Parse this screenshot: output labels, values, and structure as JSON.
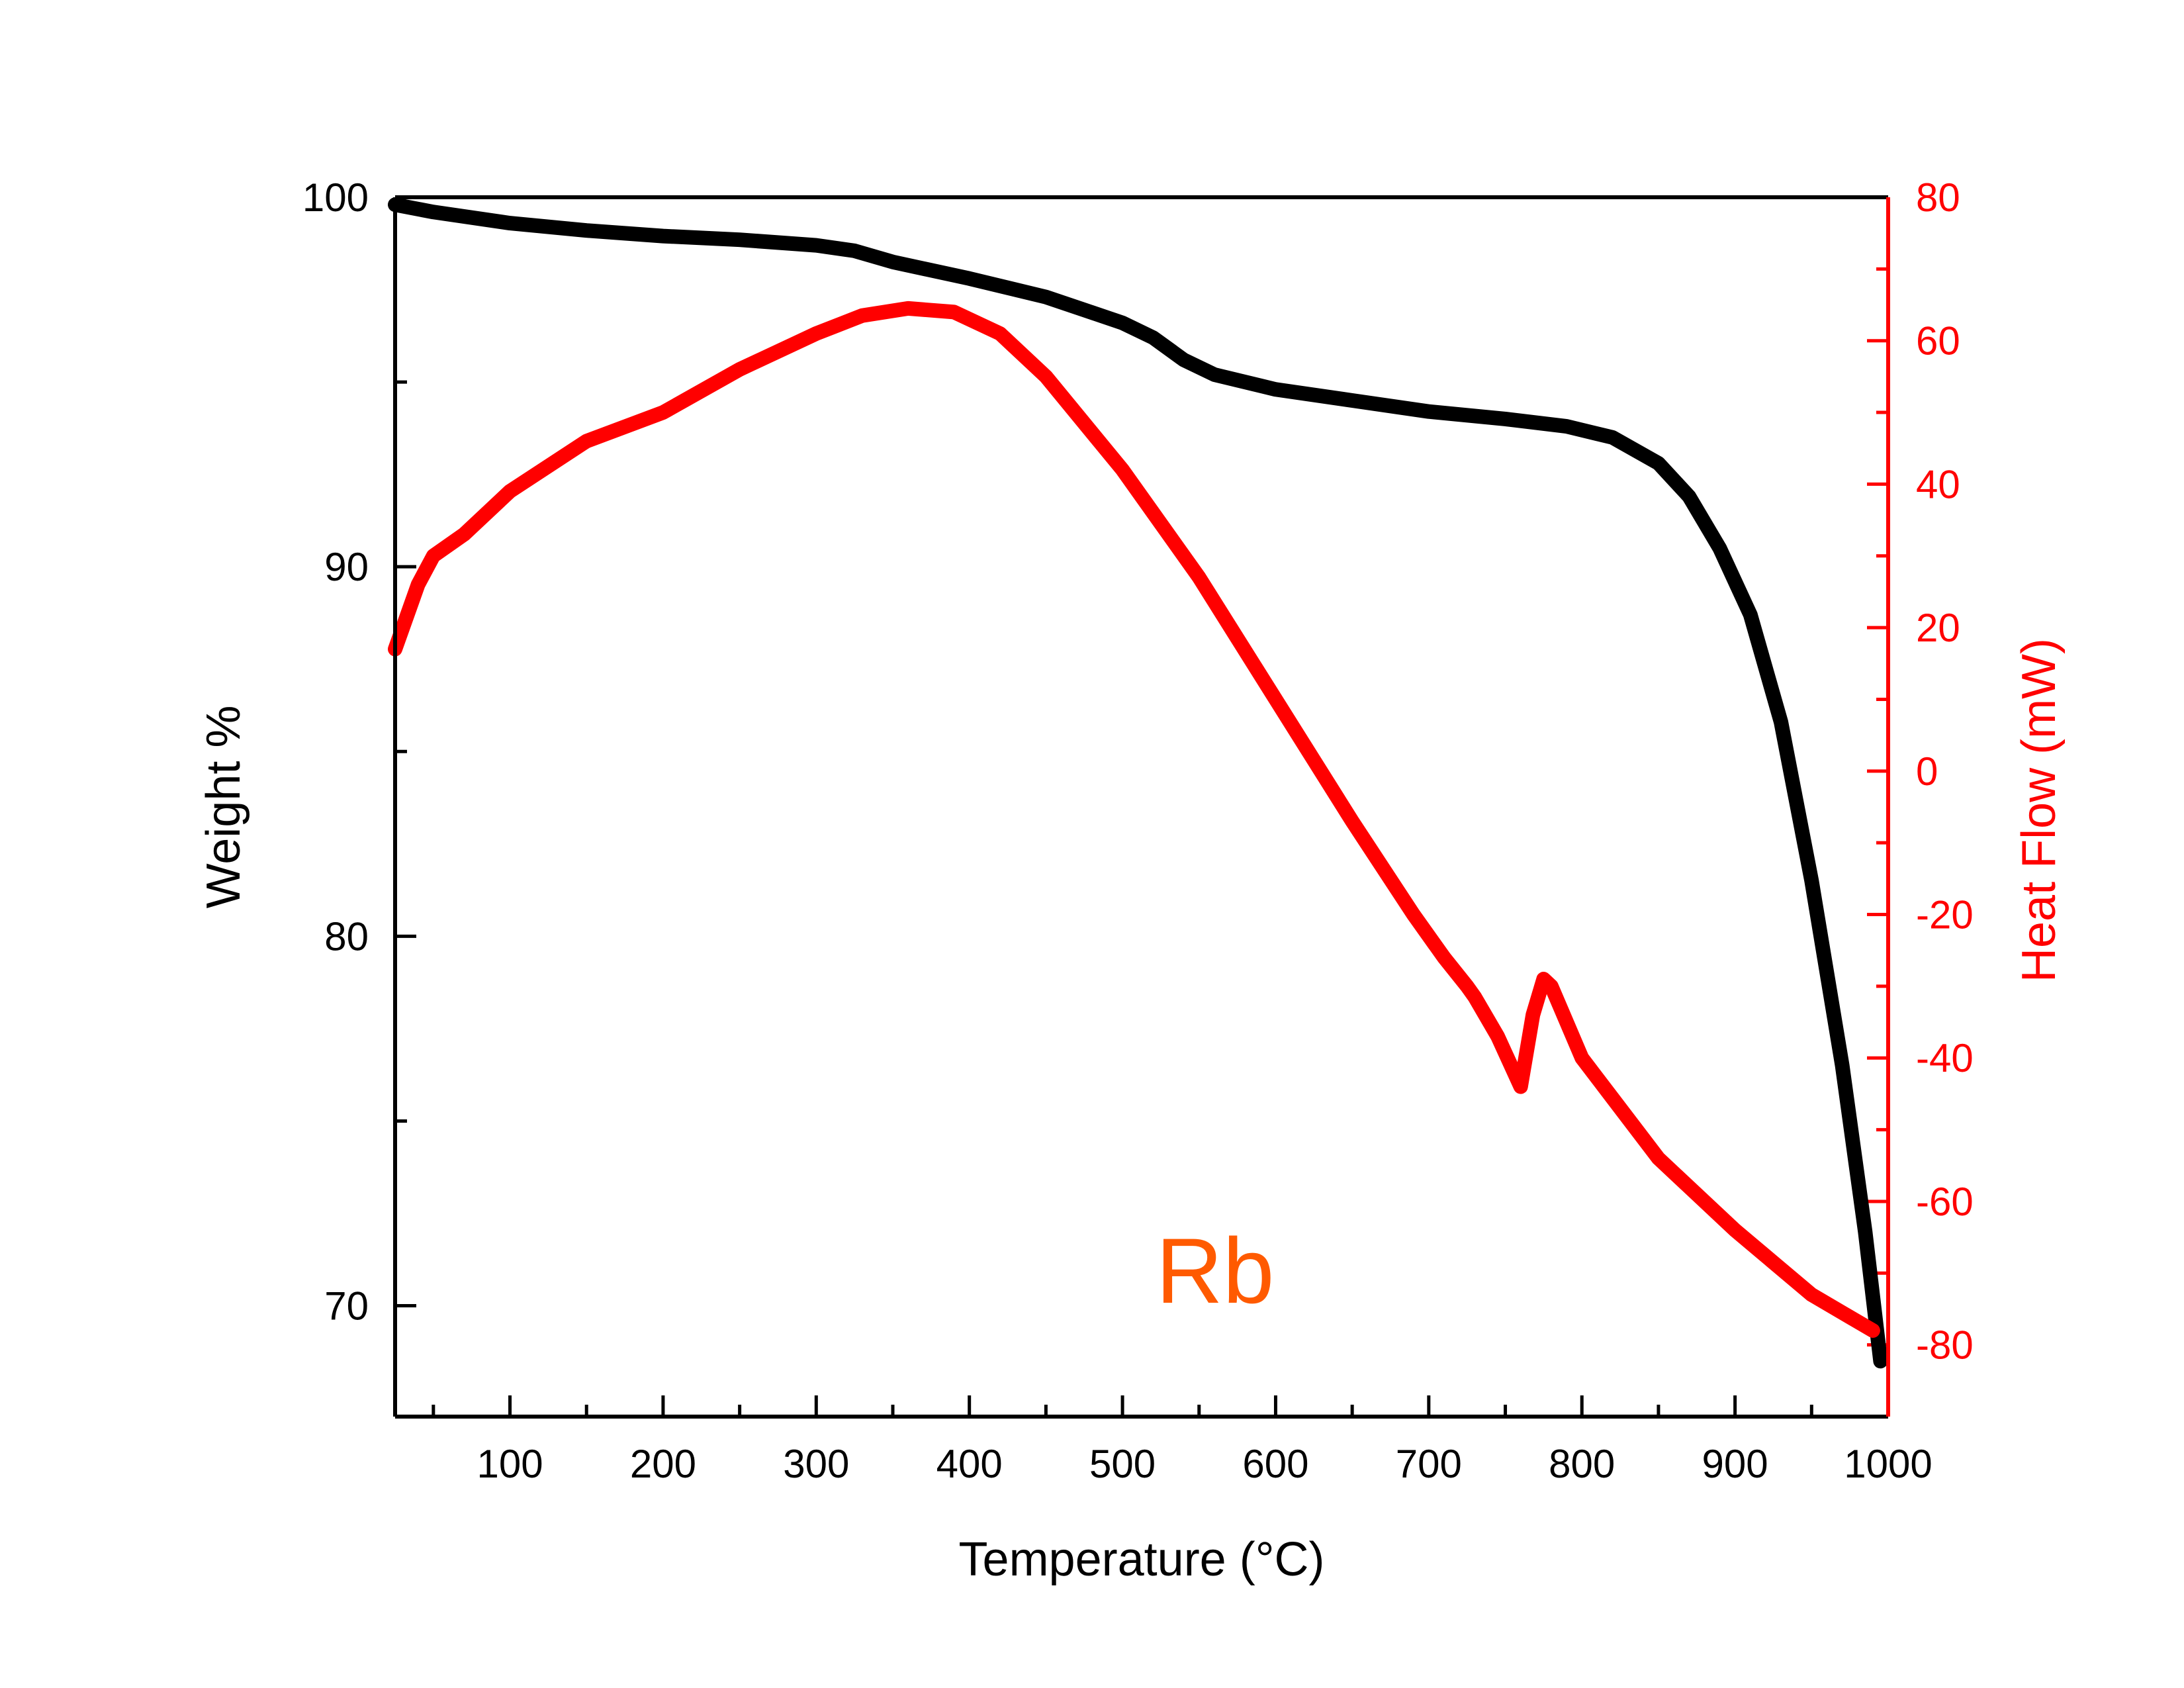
{
  "chart_data": {
    "type": "line",
    "xlabel": "Temperature (°C)",
    "ylabel_left": "Weight %",
    "ylabel_right": "Heat Flow (mW)",
    "annotation": "Rb",
    "xlim": [
      25,
      1000
    ],
    "ylim_left": [
      67,
      100
    ],
    "ylim_right": [
      -90,
      80
    ],
    "x_ticks": [
      100,
      200,
      300,
      400,
      500,
      600,
      700,
      800,
      900,
      1000
    ],
    "y_left_ticks": [
      70,
      80,
      90,
      100
    ],
    "y_right_ticks": [
      -80,
      -60,
      -40,
      -20,
      0,
      20,
      40,
      60,
      80
    ],
    "grid": false,
    "colors": {
      "weight": "#000000",
      "heat_flow": "#ff0000",
      "annotation": "#ff5a00",
      "right_axis": "#ff0000"
    },
    "series": [
      {
        "axis": "left",
        "x": [
          25,
          50,
          100,
          150,
          200,
          250,
          300,
          325,
          350,
          400,
          450,
          475,
          500,
          520,
          540,
          560,
          600,
          650,
          700,
          750,
          790,
          820,
          850,
          870,
          890,
          910,
          930,
          950,
          970,
          985,
          995
        ],
        "y": [
          99.8,
          99.6,
          99.3,
          99.1,
          98.95,
          98.85,
          98.7,
          98.55,
          98.25,
          97.8,
          97.3,
          96.95,
          96.6,
          96.2,
          95.6,
          95.2,
          94.8,
          94.5,
          94.2,
          94.0,
          93.8,
          93.5,
          92.8,
          91.9,
          90.5,
          88.7,
          85.8,
          81.5,
          76.5,
          72.0,
          68.5
        ]
      },
      {
        "axis": "right",
        "x": [
          25,
          30,
          40,
          50,
          70,
          100,
          150,
          200,
          250,
          300,
          330,
          360,
          390,
          420,
          450,
          500,
          550,
          600,
          650,
          690,
          710,
          725,
          730,
          745,
          760,
          768,
          775,
          780,
          800,
          850,
          900,
          950,
          990
        ],
        "y": [
          17,
          20,
          26,
          30,
          33,
          39,
          46,
          50,
          56,
          61,
          63.5,
          64.5,
          64,
          61,
          55,
          42,
          27,
          10,
          -7,
          -20,
          -26,
          -30,
          -31.5,
          -37,
          -44,
          -34,
          -29,
          -30,
          -40,
          -54,
          -64,
          -73,
          -78
        ]
      }
    ]
  }
}
